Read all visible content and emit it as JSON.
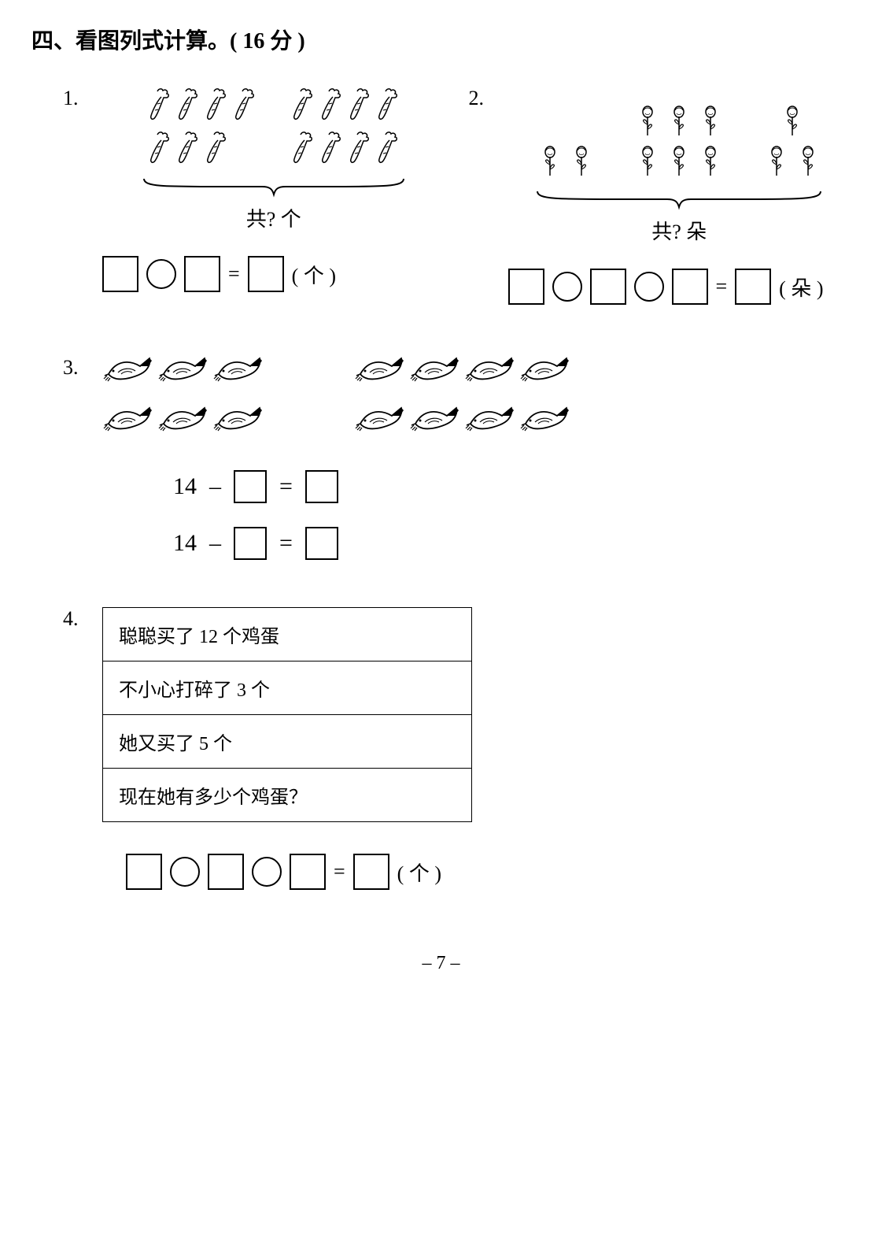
{
  "section_title": "四、看图列式计算。( 16 分 )",
  "problems": {
    "p1": {
      "num": "1.",
      "left_group": {
        "row1": 4,
        "row2": 3
      },
      "right_group": {
        "row1": 4,
        "row2": 4
      },
      "brace_label": "共? 个",
      "unit": "( 个 )",
      "equals": "="
    },
    "p2": {
      "num": "2.",
      "group1_row": 2,
      "group2_rows": [
        3,
        3
      ],
      "group3_rows": [
        1,
        2
      ],
      "brace_label": "共? 朵",
      "unit": "( 朵 )",
      "equals": "="
    },
    "p3": {
      "num": "3.",
      "left_rows": [
        3,
        3
      ],
      "right_rows": [
        4,
        4
      ],
      "eq1_lhs": "14",
      "minus": "–",
      "equals": "="
    },
    "p4": {
      "num": "4.",
      "story": [
        "聪聪买了 12 个鸡蛋",
        "不小心打碎了 3 个",
        "她又买了 5 个",
        "现在她有多少个鸡蛋？"
      ],
      "unit": "( 个 )",
      "equals": "="
    }
  },
  "page_number": "– 7 –",
  "icon_stroke": "#000000",
  "svg": {
    "brace_w1": 340,
    "brace_w2": 370
  }
}
